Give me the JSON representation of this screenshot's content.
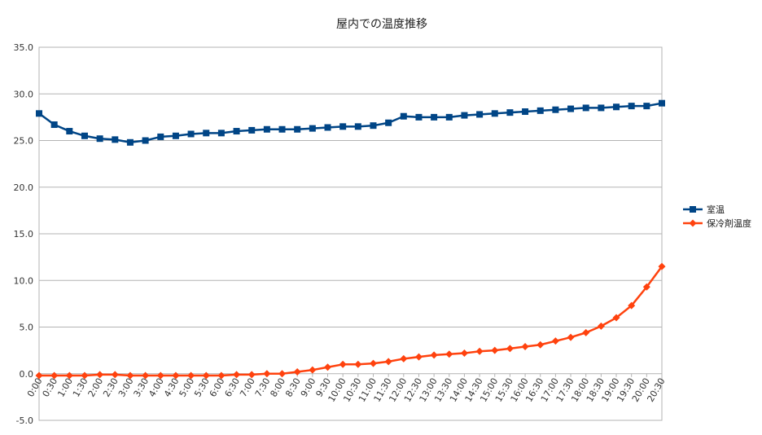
{
  "chart_data": {
    "type": "line",
    "title": "屋内での温度推移",
    "xlabel": "",
    "ylabel": "",
    "ylim": [
      -5,
      35
    ],
    "yticks": [
      "-5.0",
      "0.0",
      "5.0",
      "10.0",
      "15.0",
      "20.0",
      "25.0",
      "30.0",
      "35.0"
    ],
    "grid": true,
    "legend_position": "right",
    "categories": [
      "0:00",
      "0:30",
      "1:00",
      "1:30",
      "2:00",
      "2:30",
      "3:00",
      "3:30",
      "4:00",
      "4:30",
      "5:00",
      "5:30",
      "6:00",
      "6:30",
      "7:00",
      "7:30",
      "8:00",
      "8:30",
      "9:00",
      "9:30",
      "10:00",
      "10:30",
      "11:00",
      "11:30",
      "12:00",
      "12:30",
      "13:00",
      "13:30",
      "14:00",
      "14:30",
      "15:00",
      "15:30",
      "16:00",
      "16:30",
      "17:00",
      "17:30",
      "18:00",
      "18:30",
      "19:00",
      "19:30",
      "20:00",
      "20:30"
    ],
    "series": [
      {
        "name": "室温",
        "color": "#004586",
        "marker": "square",
        "values": [
          27.9,
          26.7,
          26.0,
          25.5,
          25.2,
          25.1,
          24.8,
          25.0,
          25.4,
          25.5,
          25.7,
          25.8,
          25.8,
          26.0,
          26.1,
          26.2,
          26.2,
          26.2,
          26.3,
          26.4,
          26.5,
          26.5,
          26.6,
          26.9,
          27.6,
          27.5,
          27.5,
          27.5,
          27.7,
          27.8,
          27.9,
          28.0,
          28.1,
          28.2,
          28.3,
          28.4,
          28.5,
          28.5,
          28.6,
          28.7,
          28.7,
          29.0
        ]
      },
      {
        "name": "保冷剤温度",
        "color": "#ff420e",
        "marker": "diamond",
        "values": [
          -0.2,
          -0.2,
          -0.2,
          -0.2,
          -0.1,
          -0.1,
          -0.2,
          -0.2,
          -0.2,
          -0.2,
          -0.2,
          -0.2,
          -0.2,
          -0.1,
          -0.1,
          0.0,
          0.0,
          0.2,
          0.4,
          0.7,
          1.0,
          1.0,
          1.1,
          1.3,
          1.6,
          1.8,
          2.0,
          2.1,
          2.2,
          2.4,
          2.5,
          2.7,
          2.9,
          3.1,
          3.5,
          3.9,
          4.4,
          5.1,
          6.0,
          7.3,
          9.3,
          11.5
        ]
      }
    ]
  }
}
